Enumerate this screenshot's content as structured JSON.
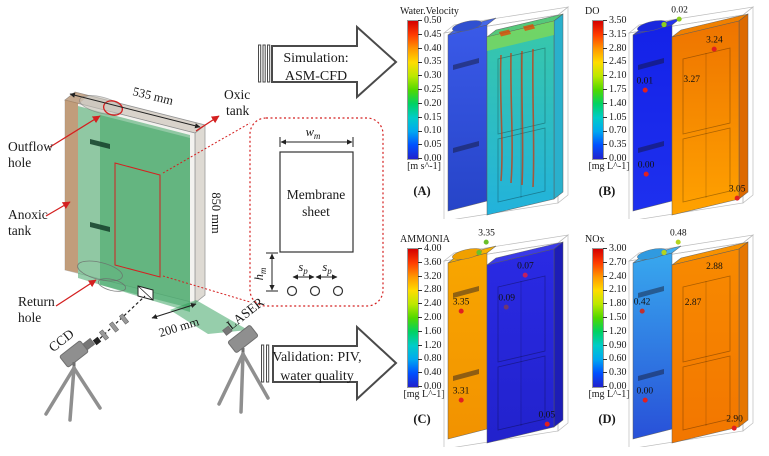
{
  "figure": {
    "left_diagram": {
      "labels": {
        "outflow_line1": "Outflow",
        "outflow_line2": "hole",
        "anoxic_line1": "Anoxic",
        "anoxic_line2": "tank",
        "oxic_line1": "Oxic",
        "oxic_line2": "tank",
        "return_line1": "Return",
        "return_line2": "hole",
        "ccd": "CCD",
        "laser": "LASER"
      },
      "dimensions": {
        "width": "535 mm",
        "height": "850 mm",
        "depth": "200 mm"
      }
    },
    "inset": {
      "title_line1": "Membrane",
      "title_line2": "sheet",
      "width_symbol": "w",
      "width_sub": "m",
      "height_symbol": "h",
      "height_sub": "m",
      "pitch_symbol": "s",
      "pitch_sub": "p"
    },
    "process_arrows": {
      "simulation_line1": "Simulation:",
      "simulation_line2": "ASM-CFD",
      "validation_line1": "Validation: PIV,",
      "validation_line2": "water quality"
    }
  },
  "chart_data": {
    "type": "heatmap",
    "note": "2x2 grid of 3D ASM-CFD volume contour panels of a membrane bioreactor (anoxic + oxic tanks)",
    "panels": [
      {
        "letter": "(A)",
        "title": "Water.Velocity",
        "units": "[m s^-1]",
        "range": [
          0.0,
          0.5
        ],
        "ticks": [
          "0.50",
          "0.45",
          "0.40",
          "0.35",
          "0.30",
          "0.25",
          "0.20",
          "0.15",
          "0.10",
          "0.05",
          "0.00"
        ],
        "has_streaks": true,
        "colors": {
          "anoxic": [
            "#3a5ae8",
            "#2644c8"
          ],
          "anoxic_top": "#4466e8",
          "lid": "#3050d0",
          "oxic": [
            "#38c8a8",
            "#22b2dc"
          ],
          "oxic_top": "#55c87a",
          "oxic_side": "#2ab0cc",
          "spot": ""
        },
        "points": []
      },
      {
        "letter": "(B)",
        "title": "DO",
        "units": "[mg L^-1]",
        "range": [
          0.0,
          3.5
        ],
        "ticks": [
          "3.50",
          "3.15",
          "2.80",
          "2.45",
          "2.10",
          "1.75",
          "1.40",
          "1.05",
          "0.70",
          "0.35",
          "0.00"
        ],
        "has_streaks": false,
        "colors": {
          "anoxic": [
            "#1422e8",
            "#1e30ee"
          ],
          "anoxic_top": "#2233ee",
          "lid": "#1a28dd",
          "oxic": [
            "#ee7400",
            "#ffa200"
          ],
          "oxic_top": "#f08000",
          "oxic_side": "#dd6a00",
          "spot": "#8ccf1e"
        },
        "points": [
          {
            "label": "0.02",
            "x": 40,
            "y": 4,
            "dot": "#8ccf1e"
          },
          {
            "label": "3.24",
            "x": 66,
            "y": 18,
            "dot": "#e02020"
          },
          {
            "label": "3.27",
            "x": 49,
            "y": 35,
            "dot": ""
          },
          {
            "label": "0.01",
            "x": 14,
            "y": 37,
            "dot": "#e02020"
          },
          {
            "label": "0.00",
            "x": 15,
            "y": 76,
            "dot": "#e02020"
          },
          {
            "label": "3.05",
            "x": 83,
            "y": 87,
            "dot": "#e02020"
          }
        ]
      },
      {
        "letter": "(C)",
        "title": "AMMONIA",
        "units": "[mg L^-1]",
        "range": [
          0.0,
          4.0
        ],
        "ticks": [
          "4.00",
          "3.60",
          "3.20",
          "2.80",
          "2.40",
          "2.00",
          "1.60",
          "1.20",
          "0.80",
          "0.40",
          "0.00"
        ],
        "has_streaks": false,
        "colors": {
          "anoxic": [
            "#f8a600",
            "#f29200"
          ],
          "anoxic_top": "#f8b000",
          "lid": "#f0a000",
          "oxic": [
            "#2a2ae4",
            "#2222cc"
          ],
          "oxic_top": "#3a3ae8",
          "oxic_side": "#1d1db6",
          "spot": "#6abf2a"
        },
        "points": [
          {
            "label": "3.35",
            "x": 34,
            "y": 2,
            "dot": "#6abf2a"
          },
          {
            "label": "0.07",
            "x": 63,
            "y": 17,
            "dot": "#c02060"
          },
          {
            "label": "0.09",
            "x": 49,
            "y": 32,
            "dot": "#703870"
          },
          {
            "label": "3.35",
            "x": 15,
            "y": 34,
            "dot": "#e02020"
          },
          {
            "label": "3.31",
            "x": 15,
            "y": 75,
            "dot": "#e02020"
          },
          {
            "label": "0.05",
            "x": 79,
            "y": 86,
            "dot": "#e02020"
          }
        ]
      },
      {
        "letter": "(D)",
        "title": "NOx",
        "units": "[mg L^-1]",
        "range": [
          0.0,
          3.0
        ],
        "ticks": [
          "3.00",
          "2.70",
          "2.40",
          "2.10",
          "1.80",
          "1.50",
          "1.20",
          "0.90",
          "0.60",
          "0.30",
          "0.00"
        ],
        "has_streaks": false,
        "colors": {
          "anoxic": [
            "#38a8ee",
            "#2850d8"
          ],
          "anoxic_top": "#44b0f0",
          "lid": "#309ae0",
          "oxic": [
            "#f88a00",
            "#f27600"
          ],
          "oxic_top": "#f89200",
          "oxic_side": "#e67600",
          "spot": "#b4d41e"
        },
        "points": [
          {
            "label": "0.48",
            "x": 39,
            "y": 2,
            "dot": "#b4d41e"
          },
          {
            "label": "2.88",
            "x": 66,
            "y": 16,
            "dot": ""
          },
          {
            "label": "2.87",
            "x": 50,
            "y": 33,
            "dot": ""
          },
          {
            "label": "0.42",
            "x": 12,
            "y": 34,
            "dot": "#c03030"
          },
          {
            "label": "0.00",
            "x": 14,
            "y": 75,
            "dot": "#e02020"
          },
          {
            "label": "2.90",
            "x": 81,
            "y": 88,
            "dot": "#e02020"
          }
        ]
      }
    ]
  },
  "colors": {
    "annotation_red": "#d42020",
    "laser_green": "#2e9e57",
    "tank_tan": "#b4875e",
    "colorbar_stops": [
      "#d40000",
      "#ff3c00",
      "#ff9600",
      "#ffdc00",
      "#bce800",
      "#50d800",
      "#00d264",
      "#00ccc8",
      "#00a8f0",
      "#0050ff",
      "#2222cc"
    ]
  }
}
